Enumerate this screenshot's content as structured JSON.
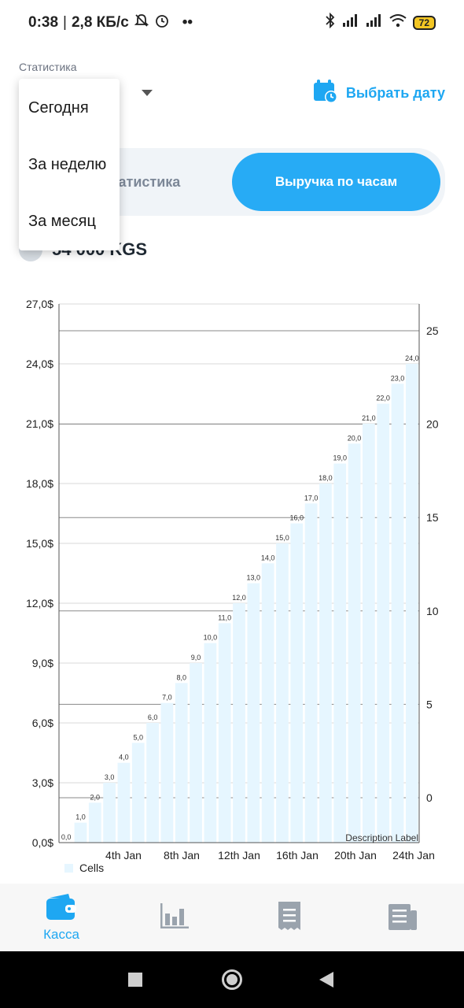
{
  "status_bar": {
    "time": "0:38",
    "speed": "2,8 КБ/с",
    "dots": "••",
    "battery": "72"
  },
  "header": {
    "stat_label": "Статистика",
    "date_picker_label": "Выбрать дату",
    "accent_color": "#1ea7f2"
  },
  "segmented": {
    "left_label": "Статистика",
    "right_label": "Выручка по часам",
    "active": "right"
  },
  "total": {
    "value": "54 000 KGS"
  },
  "dropdown": {
    "items": [
      "Сегодня",
      "За неделю",
      "За месяц"
    ]
  },
  "chart_data": {
    "type": "bar",
    "values": [
      0,
      1,
      2,
      3,
      4,
      5,
      6,
      7,
      8,
      9,
      10,
      11,
      12,
      13,
      14,
      15,
      16,
      17,
      18,
      19,
      20,
      21,
      22,
      23,
      24
    ],
    "value_labels": [
      "0,0",
      "1,0",
      "2,0",
      "3,0",
      "4,0",
      "5,0",
      "6,0",
      "7,0",
      "8,0",
      "9,0",
      "10,0",
      "11,0",
      "12,0",
      "13,0",
      "14,0",
      "15,0",
      "16,0",
      "17,0",
      "18,0",
      "19,0",
      "20,0",
      "21,0",
      "22,0",
      "23,0",
      "24,0"
    ],
    "left_ticks": [
      "0,0$",
      "3,0$",
      "6,0$",
      "9,0$",
      "12,0$",
      "15,0$",
      "18,0$",
      "21,0$",
      "24,0$",
      "27,0$"
    ],
    "left_ylim": [
      0,
      27
    ],
    "right_ticks": [
      "0",
      "5",
      "10",
      "15",
      "20",
      "25"
    ],
    "x_ticks": [
      "4th Jan",
      "8th Jan",
      "12th Jan",
      "16th Jan",
      "20th Jan",
      "24th Jan"
    ],
    "description": "Description Label",
    "legend": "Cells",
    "bar_color": "#e6f6ff",
    "grid": true
  },
  "bottom_nav": {
    "items": [
      {
        "label": "Касса",
        "icon": "wallet-icon",
        "active": true
      },
      {
        "label": "",
        "icon": "bar-chart-icon"
      },
      {
        "label": "",
        "icon": "receipt-icon"
      },
      {
        "label": "",
        "icon": "document-icon"
      }
    ]
  }
}
